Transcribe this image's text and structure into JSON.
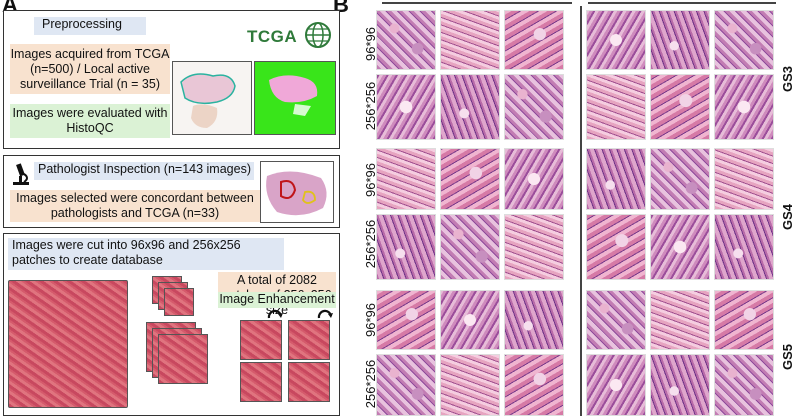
{
  "panel_a": {
    "letter": "A",
    "preprocessing": {
      "title": "Preprocessing",
      "acquired_text": "Images acquired from TCGA (n=500) / Local active surveillance Trial (n = 35)",
      "histoqc_text": "Images were evaluated with HistoQC",
      "logo_text": "TCGA"
    },
    "inspection": {
      "title": "Pathologist Inspection (n=143 images)",
      "concordant_text": "Images selected were concordant between pathologists and TCGA (n=33)"
    },
    "patching": {
      "cut_text": "Images were cut into 96x96 and 256x256 patches to create database",
      "total_text": "A total of 2082 patches of 256x256 size",
      "enhancement_text": "Image Enhancement"
    }
  },
  "panel_b": {
    "letter": "B",
    "row_labels": [
      "96*96",
      "256*256",
      "96*96",
      "256*256",
      "96*96",
      "256*256"
    ],
    "grade_labels": [
      "GS3",
      "GS4",
      "GS5"
    ]
  },
  "colors": {
    "blue_label": "#dfe7f3",
    "orange_label": "#f8e2cf",
    "green_label": "#dbf2d5",
    "tcga_green": "#2f7a3a",
    "green_mask": "#39e51a"
  }
}
